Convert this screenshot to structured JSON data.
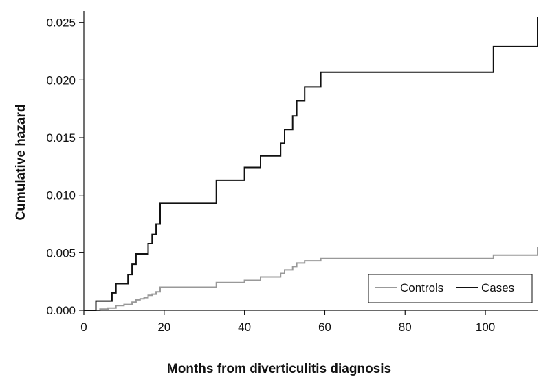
{
  "chart_data": {
    "type": "line",
    "title": "",
    "xlabel": "Months from diverticulitis diagnosis",
    "ylabel": "Cumulative hazard",
    "xlim": [
      0,
      113
    ],
    "ylim": [
      0,
      0.026
    ],
    "xticks": [
      0,
      20,
      40,
      60,
      80,
      100
    ],
    "xtick_labels": [
      "0",
      "20",
      "40",
      "60",
      "80",
      "100"
    ],
    "yticks": [
      0,
      0.005,
      0.01,
      0.015,
      0.02,
      0.025
    ],
    "ytick_labels": [
      "0.000",
      "0.005",
      "0.010",
      "0.015",
      "0.020",
      "0.025"
    ],
    "step": true,
    "grid": false,
    "legend_position": "bottom-right",
    "series": [
      {
        "name": "Controls",
        "color": "#999999",
        "x": [
          0,
          4,
          6,
          8,
          10,
          12,
          13,
          14,
          15,
          16,
          17,
          18,
          19,
          33,
          40,
          44,
          49,
          50,
          52,
          53,
          55,
          59,
          102,
          113
        ],
        "y": [
          0,
          0.0001,
          0.0002,
          0.0004,
          0.0005,
          0.0007,
          0.0009,
          0.001,
          0.0011,
          0.0013,
          0.0014,
          0.0016,
          0.002,
          0.0024,
          0.0026,
          0.0029,
          0.0032,
          0.0035,
          0.0038,
          0.0041,
          0.0043,
          0.0045,
          0.0048,
          0.0055
        ]
      },
      {
        "name": "Cases",
        "color": "#111111",
        "x": [
          0,
          3,
          7,
          8,
          11,
          12,
          13,
          14,
          16,
          17,
          18,
          19,
          33,
          40,
          44,
          49,
          50,
          52,
          53,
          55,
          59,
          102,
          113
        ],
        "y": [
          0,
          0.0008,
          0.0015,
          0.0023,
          0.0031,
          0.004,
          0.0049,
          0.0049,
          0.0058,
          0.0066,
          0.0075,
          0.0093,
          0.0113,
          0.0124,
          0.0134,
          0.0145,
          0.0157,
          0.0169,
          0.0182,
          0.0194,
          0.0207,
          0.0229,
          0.0255
        ]
      }
    ]
  }
}
